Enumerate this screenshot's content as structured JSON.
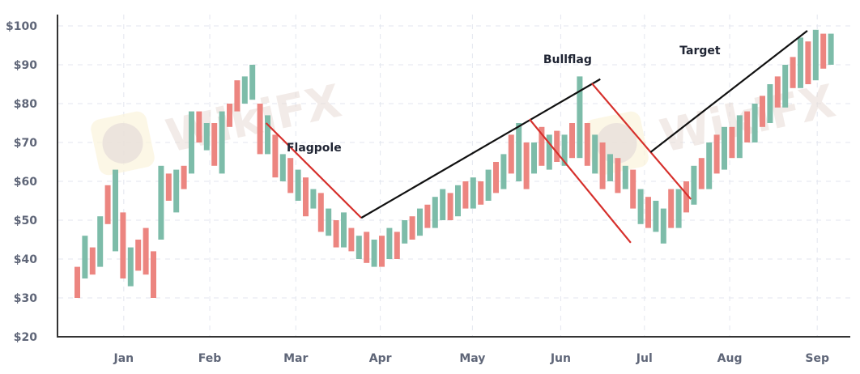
{
  "chart_data": {
    "type": "bar",
    "subtype": "ohlc-range-bars",
    "title": "",
    "xlabel": "",
    "ylabel": "",
    "ylim": [
      20,
      100
    ],
    "yticks": [
      20,
      30,
      40,
      50,
      60,
      70,
      80,
      90,
      100
    ],
    "ytick_labels": [
      "$20",
      "$30",
      "$40",
      "$50",
      "$60",
      "$70",
      "$80",
      "$90",
      "$100"
    ],
    "grid": true,
    "xticks": [
      {
        "label": "Jan",
        "bar": 6.1
      },
      {
        "label": "Feb",
        "bar": 17.4
      },
      {
        "label": "Mar",
        "bar": 28.7
      },
      {
        "label": "Apr",
        "bar": 39.8
      },
      {
        "label": "May",
        "bar": 51.9
      },
      {
        "label": "Jun",
        "bar": 63.5
      },
      {
        "label": "Jul",
        "bar": 74.5
      },
      {
        "label": "Aug",
        "bar": 85.7
      },
      {
        "label": "Sep",
        "bar": 97.2
      }
    ],
    "colors": {
      "up": "#7dbca9",
      "down": "#ec8580",
      "trend": "#111111",
      "channel": "#d6302c",
      "axis": "#333333",
      "grid": "#e3e6ef"
    },
    "bars": [
      [
        38,
        30
      ],
      [
        35,
        46
      ],
      [
        43,
        36
      ],
      [
        38,
        51
      ],
      [
        59,
        49
      ],
      [
        42,
        63
      ],
      [
        52,
        35
      ],
      [
        33,
        43
      ],
      [
        45,
        37
      ],
      [
        48,
        36
      ],
      [
        42,
        30
      ],
      [
        45,
        64
      ],
      [
        62,
        55
      ],
      [
        52,
        63
      ],
      [
        64,
        58
      ],
      [
        62,
        78
      ],
      [
        78,
        70
      ],
      [
        68,
        75
      ],
      [
        75,
        64
      ],
      [
        62,
        78
      ],
      [
        80,
        74
      ],
      [
        86,
        78
      ],
      [
        80,
        87
      ],
      [
        81,
        90
      ],
      [
        80,
        67
      ],
      [
        67,
        77
      ],
      [
        72,
        61
      ],
      [
        60,
        67
      ],
      [
        66,
        57
      ],
      [
        55,
        63
      ],
      [
        61,
        51
      ],
      [
        53,
        58
      ],
      [
        57,
        47
      ],
      [
        46,
        53
      ],
      [
        50,
        43
      ],
      [
        43,
        52
      ],
      [
        48,
        42
      ],
      [
        40,
        46
      ],
      [
        47,
        39
      ],
      [
        38,
        45
      ],
      [
        46,
        38
      ],
      [
        40,
        48
      ],
      [
        47,
        40
      ],
      [
        44,
        50
      ],
      [
        51,
        45
      ],
      [
        46,
        53
      ],
      [
        54,
        48
      ],
      [
        48,
        56
      ],
      [
        50,
        58
      ],
      [
        57,
        50
      ],
      [
        51,
        59
      ],
      [
        60,
        53
      ],
      [
        53,
        61
      ],
      [
        60,
        54
      ],
      [
        55,
        63
      ],
      [
        65,
        57
      ],
      [
        58,
        67
      ],
      [
        72,
        62
      ],
      [
        60,
        75
      ],
      [
        70,
        58
      ],
      [
        62,
        70
      ],
      [
        74,
        64
      ],
      [
        63,
        72
      ],
      [
        73,
        65
      ],
      [
        64,
        72
      ],
      [
        75,
        66
      ],
      [
        66,
        87
      ],
      [
        75,
        64
      ],
      [
        62,
        72
      ],
      [
        70,
        58
      ],
      [
        60,
        67
      ],
      [
        66,
        57
      ],
      [
        58,
        64
      ],
      [
        63,
        53
      ],
      [
        49,
        58
      ],
      [
        56,
        48
      ],
      [
        47,
        55
      ],
      [
        44,
        53
      ],
      [
        58,
        48
      ],
      [
        48,
        58
      ],
      [
        60,
        52
      ],
      [
        54,
        64
      ],
      [
        66,
        58
      ],
      [
        58,
        70
      ],
      [
        72,
        62
      ],
      [
        63,
        74
      ],
      [
        74,
        66
      ],
      [
        66,
        77
      ],
      [
        78,
        70
      ],
      [
        70,
        80
      ],
      [
        82,
        74
      ],
      [
        75,
        85
      ],
      [
        87,
        79
      ],
      [
        79,
        90
      ],
      [
        92,
        84
      ],
      [
        84,
        97
      ],
      [
        96,
        85
      ],
      [
        86,
        99
      ],
      [
        98,
        89
      ],
      [
        90,
        98
      ]
    ],
    "annotations": {
      "lines": [
        {
          "name": "flagpole-line",
          "kind": "channel",
          "from": [
            24.8,
            75
          ],
          "to": [
            37.3,
            50.6
          ]
        },
        {
          "name": "bullflag-trend-line",
          "kind": "trend",
          "from": [
            37.3,
            50.6
          ],
          "to": [
            68.7,
            86.3
          ]
        },
        {
          "name": "flag-channel-lower",
          "kind": "channel",
          "from": [
            59.4,
            76
          ],
          "to": [
            72.7,
            44.2
          ]
        },
        {
          "name": "flag-channel-upper",
          "kind": "channel",
          "from": [
            67.6,
            85.2
          ],
          "to": [
            80.6,
            55.4
          ]
        },
        {
          "name": "target-line",
          "kind": "trend",
          "from": [
            75.3,
            67.5
          ],
          "to": [
            95.9,
            98.75
          ]
        }
      ],
      "labels": [
        {
          "text": "Flagpole",
          "at": [
            31.1,
            68.75
          ]
        },
        {
          "text": "Bullflag",
          "at": [
            64.4,
            91.5
          ]
        },
        {
          "text": "Target",
          "at": [
            81.8,
            93.75
          ]
        }
      ]
    }
  },
  "watermark": {
    "text": "WikiFX"
  }
}
